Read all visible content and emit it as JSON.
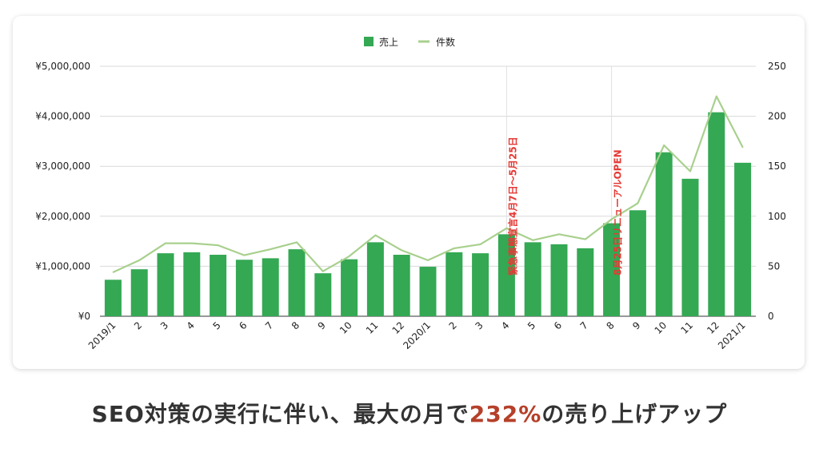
{
  "chart_data": {
    "type": "bar+line",
    "legend": {
      "placement": "top-center",
      "items": [
        {
          "label": "売上",
          "symbol": "square"
        },
        {
          "label": "件数",
          "symbol": "line"
        }
      ]
    },
    "categories": [
      "2019/1",
      "2",
      "3",
      "4",
      "5",
      "6",
      "7",
      "8",
      "9",
      "10",
      "11",
      "12",
      "2020/1",
      "2",
      "3",
      "4",
      "5",
      "6",
      "7",
      "8",
      "9",
      "10",
      "11",
      "12",
      "2021/1"
    ],
    "series": [
      {
        "name": "売上",
        "axis": "left",
        "kind": "bar",
        "color": "#34a853",
        "values": [
          730000,
          940000,
          1260000,
          1280000,
          1230000,
          1130000,
          1160000,
          1340000,
          860000,
          1140000,
          1480000,
          1230000,
          990000,
          1280000,
          1260000,
          1640000,
          1480000,
          1440000,
          1360000,
          1860000,
          2120000,
          3280000,
          2750000,
          4080000,
          3070000
        ]
      },
      {
        "name": "件数",
        "axis": "right",
        "kind": "line",
        "color": "#a8d08d",
        "values": [
          44,
          56,
          73,
          73,
          71,
          61,
          67,
          74,
          45,
          60,
          81,
          66,
          56,
          68,
          72,
          88,
          76,
          82,
          77,
          97,
          113,
          171,
          145,
          220,
          169
        ]
      }
    ],
    "y_left": {
      "min": 0,
      "max": 5000000,
      "ticks": [
        0,
        1000000,
        2000000,
        3000000,
        4000000,
        5000000
      ],
      "tick_labels": [
        "¥0",
        "¥1,000,000",
        "¥2,000,000",
        "¥3,000,000",
        "¥4,000,000",
        "¥5,000,000"
      ]
    },
    "y_right": {
      "min": 0,
      "max": 250,
      "ticks": [
        0,
        50,
        100,
        150,
        200,
        250
      ],
      "tick_labels": [
        "0",
        "50",
        "100",
        "150",
        "200",
        "250"
      ]
    },
    "grid": true,
    "annotations": [
      {
        "category_index": 15,
        "text": "緊急事態宣言4月7日～5月25日",
        "color": "#e53935"
      },
      {
        "category_index": 19,
        "text": "8月25日リニューアルOPEN",
        "color": "#e53935"
      }
    ]
  },
  "caption": {
    "before": "SEO対策の実行に伴い、最大の月で",
    "highlight": "232%",
    "after": "の売り上げアップ"
  }
}
